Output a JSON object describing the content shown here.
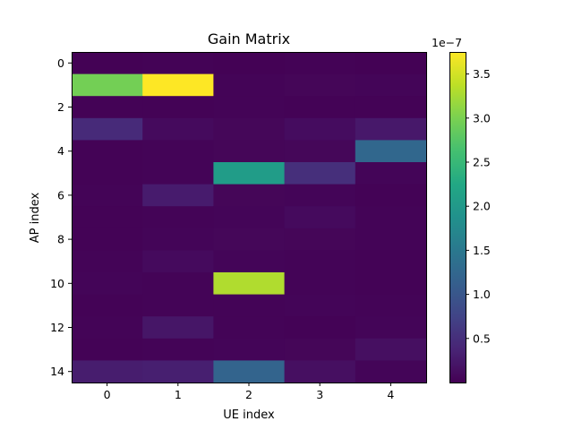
{
  "chart_data": {
    "type": "heatmap",
    "title": "Gain Matrix",
    "xlabel": "UE index",
    "ylabel": "AP index",
    "x_ticks": [
      0,
      1,
      2,
      3,
      4
    ],
    "y_ticks": [
      0,
      2,
      4,
      6,
      8,
      10,
      12,
      14
    ],
    "rows": 15,
    "cols": 5,
    "colormap": "viridis",
    "colorbar": {
      "offset_label": "1e−7",
      "ticks": [
        0.5,
        1.0,
        1.5,
        2.0,
        2.5,
        3.0,
        3.5
      ],
      "tick_labels": [
        "0.5",
        "1.0",
        "1.5",
        "2.0",
        "2.5",
        "3.0",
        "3.5"
      ],
      "min": 0.0,
      "max": 3.75
    },
    "values": [
      [
        0.01,
        0.02,
        0.01,
        0.02,
        0.01
      ],
      [
        2.95,
        3.75,
        0.03,
        0.05,
        0.04
      ],
      [
        0.02,
        0.02,
        0.03,
        0.02,
        0.02
      ],
      [
        0.45,
        0.1,
        0.06,
        0.12,
        0.25
      ],
      [
        0.02,
        0.03,
        0.05,
        0.06,
        1.25
      ],
      [
        0.02,
        0.03,
        2.05,
        0.5,
        0.04
      ],
      [
        0.03,
        0.28,
        0.05,
        0.04,
        0.02
      ],
      [
        0.02,
        0.03,
        0.04,
        0.1,
        0.03
      ],
      [
        0.02,
        0.04,
        0.06,
        0.05,
        0.03
      ],
      [
        0.03,
        0.1,
        0.04,
        0.03,
        0.02
      ],
      [
        0.04,
        0.03,
        3.3,
        0.03,
        0.02
      ],
      [
        0.02,
        0.03,
        0.03,
        0.04,
        0.03
      ],
      [
        0.03,
        0.22,
        0.03,
        0.02,
        0.04
      ],
      [
        0.02,
        0.03,
        0.04,
        0.05,
        0.15
      ],
      [
        0.3,
        0.32,
        1.2,
        0.15,
        0.04
      ]
    ]
  }
}
